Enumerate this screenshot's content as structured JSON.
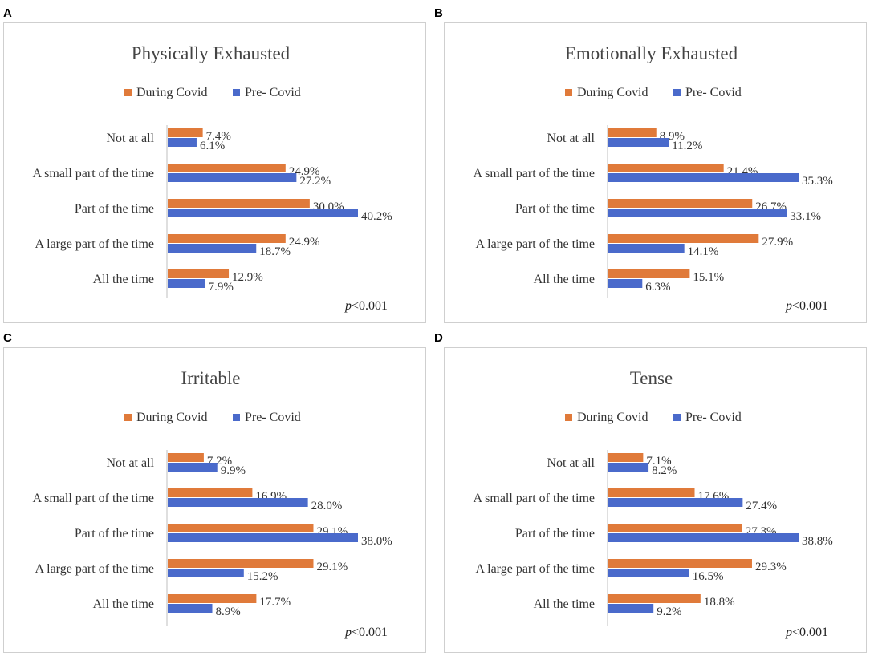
{
  "figure": {
    "colors": {
      "during": "#E07A3A",
      "pre": "#4A6ACB",
      "axis": "#bfbfbf",
      "text": "#333333"
    }
  },
  "chart_data": [
    {
      "panel_label": "A",
      "type": "bar",
      "orientation": "horizontal",
      "title": "Physically Exhausted",
      "categories": [
        "Not at all",
        "A small part of the time",
        "Part of the time",
        "A large part of the time",
        "All the time"
      ],
      "series": [
        {
          "name": "During Covid",
          "values": [
            7.4,
            24.9,
            30.0,
            24.9,
            12.9
          ],
          "labels": [
            "7.4%",
            "24.9%",
            "30.0%",
            "24.9%",
            "12.9%"
          ]
        },
        {
          "name": "Pre- Covid",
          "values": [
            6.1,
            27.2,
            40.2,
            18.7,
            7.9
          ],
          "labels": [
            "6.1%",
            "27.2%",
            "40.2%",
            "18.7%",
            "7.9%"
          ]
        }
      ],
      "pvalue": {
        "p": "p",
        "rest": "<0.001"
      },
      "xlim": [
        0,
        40.2
      ],
      "legend_position": "top"
    },
    {
      "panel_label": "B",
      "type": "bar",
      "orientation": "horizontal",
      "title": "Emotionally Exhausted",
      "categories": [
        "Not at all",
        "A small part of the time",
        "Part of the time",
        "A large part of the time",
        "All the time"
      ],
      "series": [
        {
          "name": "During Covid",
          "values": [
            8.9,
            21.4,
            26.7,
            27.9,
            15.1
          ],
          "labels": [
            "8.9%",
            "21.4%",
            "26.7%",
            "27.9%",
            "15.1%"
          ]
        },
        {
          "name": "Pre- Covid",
          "values": [
            11.2,
            35.3,
            33.1,
            14.1,
            6.3
          ],
          "labels": [
            "11.2%",
            "35.3%",
            "33.1%",
            "14.1%",
            "6.3%"
          ]
        }
      ],
      "pvalue": {
        "p": "p",
        "rest": "<0.001"
      },
      "xlim": [
        0,
        35.3
      ],
      "legend_position": "top"
    },
    {
      "panel_label": "C",
      "type": "bar",
      "orientation": "horizontal",
      "title": "Irritable",
      "categories": [
        "Not at all",
        "A small part of the time",
        "Part of the time",
        "A large part of the time",
        "All the time"
      ],
      "series": [
        {
          "name": "During Covid",
          "values": [
            7.2,
            16.9,
            29.1,
            29.1,
            17.7
          ],
          "labels": [
            "7.2%",
            "16.9%",
            "29.1%",
            "29.1%",
            "17.7%"
          ]
        },
        {
          "name": "Pre- Covid",
          "values": [
            9.9,
            28.0,
            38.0,
            15.2,
            8.9
          ],
          "labels": [
            "9.9%",
            "28.0%",
            "38.0%",
            "15.2%",
            "8.9%"
          ]
        }
      ],
      "pvalue": {
        "p": "p",
        "rest": "<0.001"
      },
      "xlim": [
        0,
        38.0
      ],
      "legend_position": "top"
    },
    {
      "panel_label": "D",
      "type": "bar",
      "orientation": "horizontal",
      "title": "Tense",
      "categories": [
        "Not at all",
        "A small part of the time",
        "Part of the time",
        "A large part of the time",
        "All the time"
      ],
      "series": [
        {
          "name": "During Covid",
          "values": [
            7.1,
            17.6,
            27.3,
            29.3,
            18.8
          ],
          "labels": [
            "7.1%",
            "17.6%",
            "27.3%",
            "29.3%",
            "18.8%"
          ]
        },
        {
          "name": "Pre- Covid",
          "values": [
            8.2,
            27.4,
            38.8,
            16.5,
            9.2
          ],
          "labels": [
            "8.2%",
            "27.4%",
            "38.8%",
            "16.5%",
            "9.2%"
          ]
        }
      ],
      "pvalue": {
        "p": "p",
        "rest": "<0.001"
      },
      "xlim": [
        0,
        38.8
      ],
      "legend_position": "top"
    }
  ]
}
